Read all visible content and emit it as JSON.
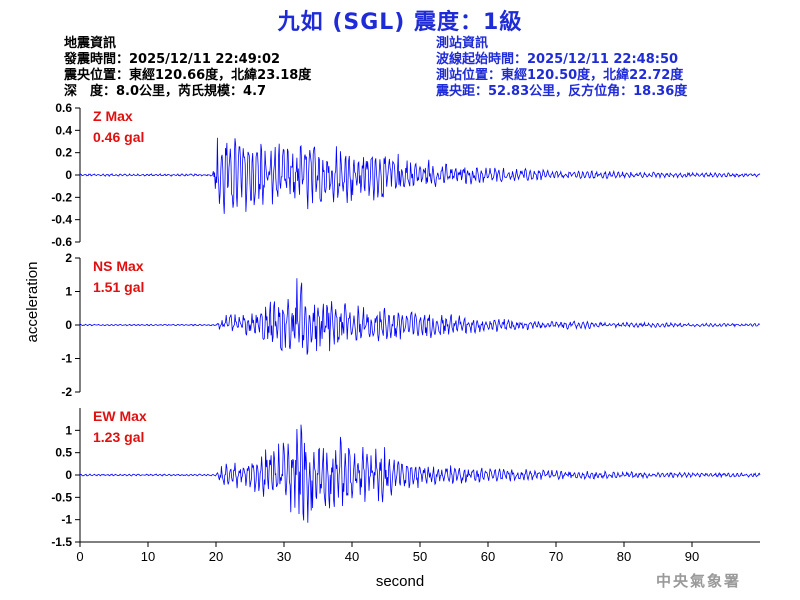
{
  "title": "九如 (SGL) 震度：1級",
  "event_info": {
    "heading": "地震資訊",
    "origin_time": "發震時間：2025/12/11 22:49:02",
    "epicenter": "震央位置：東經120.66度，北緯23.18度",
    "depth_magnitude": "深　度：8.0公里，芮氏規模：4.7"
  },
  "station_info": {
    "heading": "測站資訊",
    "wave_start": "波線起始時間：2025/12/11 22:48:50",
    "station_location": "測站位置：東經120.50度，北緯22.72度",
    "distance_azimuth": "震央距：52.83公里，反方位角：18.36度"
  },
  "watermark": "中央氣象署",
  "colors": {
    "title": "#1f2bd6",
    "trace": "#0000ff",
    "max_label": "#e01010",
    "axis": "#000000"
  },
  "chart_data": {
    "type": "line",
    "xlabel": "second",
    "ylabel": "acceleration",
    "xlim": [
      0,
      100
    ],
    "x_ticks": [
      0,
      10,
      20,
      30,
      40,
      50,
      60,
      70,
      80,
      90
    ],
    "grid": false,
    "panels": [
      {
        "name": "Z",
        "max_label": "Z Max",
        "max_value": "0.46 gal",
        "ylim": [
          -0.6,
          0.6
        ],
        "y_ticks": [
          0.6,
          0.4,
          0.2,
          0,
          -0.2,
          -0.4,
          -0.6
        ],
        "y_tick_labels": [
          "0.6",
          "0.4",
          "0.2",
          "0",
          "-0.2",
          "-0.4",
          "-0.6"
        ],
        "envelope": [
          [
            0,
            0.01
          ],
          [
            19.5,
            0.01
          ],
          [
            20,
            0.32
          ],
          [
            21,
            0.38
          ],
          [
            24,
            0.3
          ],
          [
            27,
            0.34
          ],
          [
            30,
            0.3
          ],
          [
            34,
            0.3
          ],
          [
            40,
            0.24
          ],
          [
            46,
            0.2
          ],
          [
            50,
            0.16
          ],
          [
            53,
            0.1
          ],
          [
            60,
            0.07
          ],
          [
            70,
            0.04
          ],
          [
            80,
            0.03
          ],
          [
            90,
            0.02
          ],
          [
            100,
            0.015
          ]
        ]
      },
      {
        "name": "NS",
        "max_label": "NS Max",
        "max_value": "1.51 gal",
        "ylim": [
          -2,
          2
        ],
        "y_ticks": [
          2,
          1,
          0,
          -1,
          -2
        ],
        "y_tick_labels": [
          "2",
          "1",
          "0",
          "-1",
          "-2"
        ],
        "envelope": [
          [
            0,
            0.02
          ],
          [
            20,
            0.02
          ],
          [
            21,
            0.3
          ],
          [
            25,
            0.35
          ],
          [
            30,
            0.9
          ],
          [
            32,
            1.4
          ],
          [
            34,
            0.9
          ],
          [
            38,
            0.75
          ],
          [
            42,
            0.6
          ],
          [
            46,
            0.5
          ],
          [
            50,
            0.4
          ],
          [
            55,
            0.3
          ],
          [
            60,
            0.2
          ],
          [
            70,
            0.12
          ],
          [
            80,
            0.08
          ],
          [
            90,
            0.05
          ],
          [
            100,
            0.04
          ]
        ]
      },
      {
        "name": "EW",
        "max_label": "EW Max",
        "max_value": "1.23 gal",
        "ylim": [
          -1.5,
          1.5
        ],
        "y_ticks": [
          1,
          0.5,
          0,
          -0.5,
          -1,
          -1.5
        ],
        "y_tick_labels": [
          "1",
          "0.5",
          "0",
          "-0.5",
          "-1",
          "-1.5"
        ],
        "envelope": [
          [
            0,
            0.02
          ],
          [
            20,
            0.02
          ],
          [
            21,
            0.3
          ],
          [
            25,
            0.3
          ],
          [
            28,
            0.6
          ],
          [
            30,
            0.9
          ],
          [
            32,
            1.1
          ],
          [
            35,
            0.95
          ],
          [
            40,
            0.7
          ],
          [
            45,
            0.6
          ],
          [
            47,
            0.35
          ],
          [
            52,
            0.22
          ],
          [
            60,
            0.15
          ],
          [
            70,
            0.1
          ],
          [
            80,
            0.07
          ],
          [
            90,
            0.05
          ],
          [
            100,
            0.04
          ]
        ]
      }
    ]
  }
}
